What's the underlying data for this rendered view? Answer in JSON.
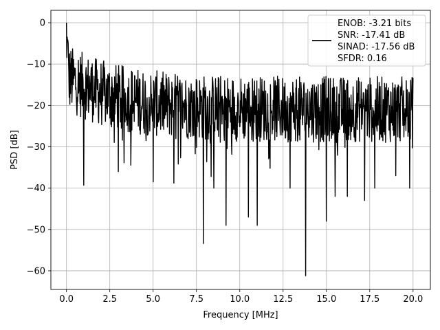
{
  "chart_data": {
    "type": "line",
    "title": "",
    "xlabel": "Frequency [MHz]",
    "ylabel": "PSD [dB]",
    "xlim": [
      -0.9,
      21.0
    ],
    "ylim": [
      -64.5,
      3.0
    ],
    "xticks": [
      0.0,
      2.5,
      5.0,
      7.5,
      10.0,
      12.5,
      15.0,
      17.5,
      20.0
    ],
    "xtick_labels": [
      "0.0",
      "2.5",
      "5.0",
      "7.5",
      "10.0",
      "12.5",
      "15.0",
      "17.5",
      "20.0"
    ],
    "yticks": [
      0,
      -10,
      -20,
      -30,
      -40,
      -50,
      -60
    ],
    "ytick_labels": [
      "0",
      "−10",
      "−20",
      "−30",
      "−40",
      "−50",
      "−60"
    ],
    "grid": true,
    "legend": {
      "placement": "top-right",
      "entries": [
        "ENOB: -3.21 bits",
        "SNR: -17.41 dB",
        "SINAD: -17.56 dB",
        "SFDR: 0.16"
      ]
    },
    "series": [
      {
        "color": "#000000",
        "sample_count": 1024,
        "x_range": [
          0.0,
          20.0
        ],
        "peak": {
          "x": 0.0,
          "y": 0.0
        },
        "notable_dips": [
          {
            "x": 1.0,
            "y": -39.3
          },
          {
            "x": 3.0,
            "y": -36.0
          },
          {
            "x": 5.0,
            "y": -38.5
          },
          {
            "x": 6.2,
            "y": -38.8
          },
          {
            "x": 7.9,
            "y": -53.4
          },
          {
            "x": 8.5,
            "y": -40.0
          },
          {
            "x": 9.2,
            "y": -49.0
          },
          {
            "x": 10.5,
            "y": -47.0
          },
          {
            "x": 11.0,
            "y": -49.0
          },
          {
            "x": 12.9,
            "y": -40.0
          },
          {
            "x": 13.8,
            "y": -61.2
          },
          {
            "x": 15.0,
            "y": -48.0
          },
          {
            "x": 15.5,
            "y": -42.0
          },
          {
            "x": 16.2,
            "y": -42.0
          },
          {
            "x": 17.2,
            "y": -43.0
          },
          {
            "x": 17.8,
            "y": -40.0
          },
          {
            "x": 19.0,
            "y": -37.0
          },
          {
            "x": 19.8,
            "y": -40.0
          }
        ]
      }
    ]
  }
}
